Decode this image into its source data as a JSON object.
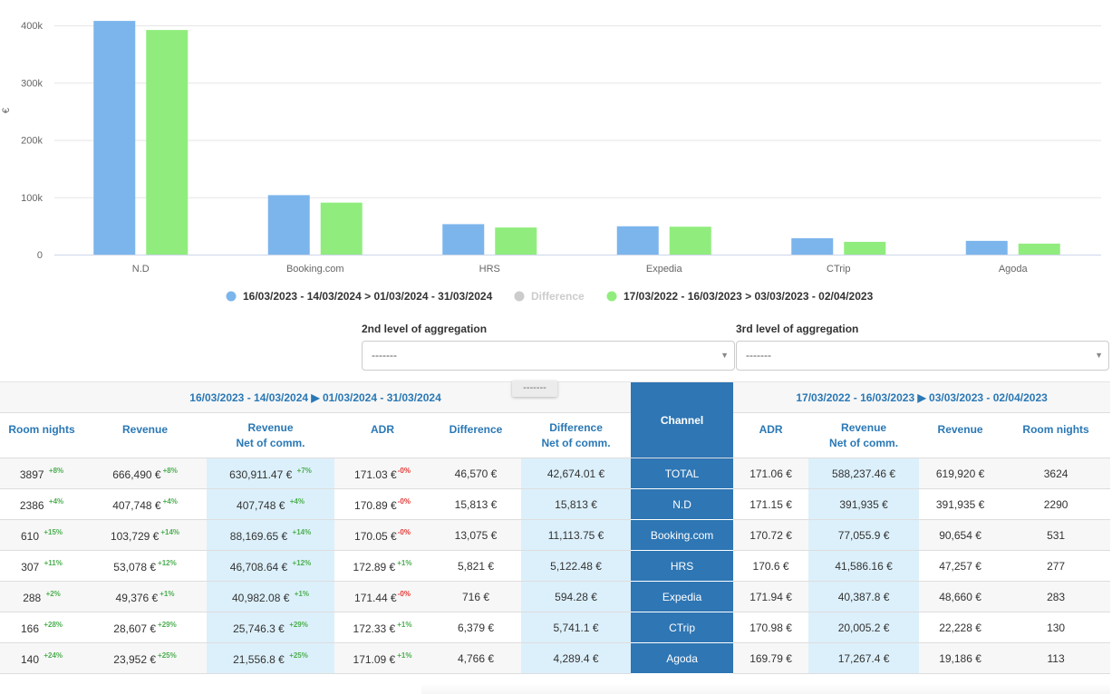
{
  "chart_data": {
    "type": "bar",
    "title": "",
    "xlabel": "",
    "ylabel": "€",
    "ylim": [
      0,
      400000
    ],
    "yticks": [
      0,
      100000,
      200000,
      300000,
      400000
    ],
    "ytick_labels": [
      "0",
      "100k",
      "200k",
      "300k",
      "400k"
    ],
    "grid": true,
    "legend_position": "bottom-center",
    "categories": [
      "N.D",
      "Booking.com",
      "HRS",
      "Expedia",
      "CTrip",
      "Agoda"
    ],
    "series": [
      {
        "name": "16/03/2023 - 14/03/2024 > 01/03/2024 - 31/03/2024",
        "color": "#7cb5ec",
        "visible": true,
        "values": [
          407748,
          103729,
          53078,
          49376,
          28607,
          23952
        ]
      },
      {
        "name": "Difference",
        "color": "#cccccc",
        "visible": false,
        "values": [
          15813,
          13075,
          5821,
          716,
          6379,
          4766
        ]
      },
      {
        "name": "17/03/2022 - 16/03/2023 > 03/03/2023 - 02/04/2023",
        "color": "#90ed7d",
        "visible": true,
        "values": [
          391935,
          90654,
          47257,
          48660,
          22228,
          19186
        ]
      }
    ]
  },
  "aggregation": {
    "second": {
      "label": "2nd level of aggregation",
      "value": "-------"
    },
    "third": {
      "label": "3rd level of aggregation",
      "value": "-------"
    },
    "drag_chip": "-------"
  },
  "table": {
    "current_period": "16/03/2023 - 14/03/2024 ▶ 01/03/2024 - 31/03/2024",
    "previous_period": "17/03/2022 - 16/03/2023 ▶ 03/03/2023 - 02/04/2023",
    "headers": {
      "room_nights": "Room nights",
      "revenue": "Revenue",
      "revenue_net_1": "Revenue",
      "revenue_net_2": "Net of comm.",
      "adr": "ADR",
      "difference": "Difference",
      "difference_net_1": "Difference",
      "difference_net_2": "Net of comm.",
      "channel": "Channel"
    },
    "rows": [
      {
        "channel": "TOTAL",
        "rn": "3897",
        "rn_var": "+8%",
        "rev": "666,490 €",
        "rev_var": "+8%",
        "rev_net": "630,911.47 €",
        "rev_net_var": "+7%",
        "adr": "171.03 €",
        "adr_var": "-0%",
        "diff": "46,570 €",
        "diff_net": "42,674.01 €",
        "p_adr": "171.06 €",
        "p_rev_net": "588,237.46 €",
        "p_rev": "619,920 €",
        "p_rn": "3624"
      },
      {
        "channel": "N.D",
        "rn": "2386",
        "rn_var": "+4%",
        "rev": "407,748 €",
        "rev_var": "+4%",
        "rev_net": "407,748 €",
        "rev_net_var": "+4%",
        "adr": "170.89 €",
        "adr_var": "-0%",
        "diff": "15,813 €",
        "diff_net": "15,813 €",
        "p_adr": "171.15 €",
        "p_rev_net": "391,935 €",
        "p_rev": "391,935 €",
        "p_rn": "2290"
      },
      {
        "channel": "Booking.com",
        "rn": "610",
        "rn_var": "+15%",
        "rev": "103,729 €",
        "rev_var": "+14%",
        "rev_net": "88,169.65 €",
        "rev_net_var": "+14%",
        "adr": "170.05 €",
        "adr_var": "-0%",
        "diff": "13,075 €",
        "diff_net": "11,113.75 €",
        "p_adr": "170.72 €",
        "p_rev_net": "77,055.9 €",
        "p_rev": "90,654 €",
        "p_rn": "531"
      },
      {
        "channel": "HRS",
        "rn": "307",
        "rn_var": "+11%",
        "rev": "53,078 €",
        "rev_var": "+12%",
        "rev_net": "46,708.64 €",
        "rev_net_var": "+12%",
        "adr": "172.89 €",
        "adr_var": "+1%",
        "diff": "5,821 €",
        "diff_net": "5,122.48 €",
        "p_adr": "170.6 €",
        "p_rev_net": "41,586.16 €",
        "p_rev": "47,257 €",
        "p_rn": "277"
      },
      {
        "channel": "Expedia",
        "rn": "288",
        "rn_var": "+2%",
        "rev": "49,376 €",
        "rev_var": "+1%",
        "rev_net": "40,982.08 €",
        "rev_net_var": "+1%",
        "adr": "171.44 €",
        "adr_var": "-0%",
        "diff": "716 €",
        "diff_net": "594.28 €",
        "p_adr": "171.94 €",
        "p_rev_net": "40,387.8 €",
        "p_rev": "48,660 €",
        "p_rn": "283"
      },
      {
        "channel": "CTrip",
        "rn": "166",
        "rn_var": "+28%",
        "rev": "28,607 €",
        "rev_var": "+29%",
        "rev_net": "25,746.3 €",
        "rev_net_var": "+29%",
        "adr": "172.33 €",
        "adr_var": "+1%",
        "diff": "6,379 €",
        "diff_net": "5,741.1 €",
        "p_adr": "170.98 €",
        "p_rev_net": "20,005.2 €",
        "p_rev": "22,228 €",
        "p_rn": "130"
      },
      {
        "channel": "Agoda",
        "rn": "140",
        "rn_var": "+24%",
        "rev": "23,952 €",
        "rev_var": "+25%",
        "rev_net": "21,556.8 €",
        "rev_net_var": "+25%",
        "adr": "171.09 €",
        "adr_var": "+1%",
        "diff": "4,766 €",
        "diff_net": "4,289.4 €",
        "p_adr": "169.79 €",
        "p_rev_net": "17,267.4 €",
        "p_rev": "19,186 €",
        "p_rn": "113"
      }
    ]
  }
}
